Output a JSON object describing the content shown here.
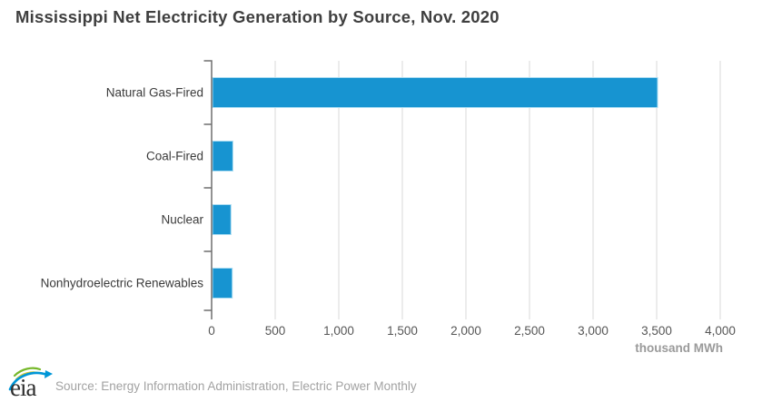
{
  "title": "Mississippi Net Electricity Generation by Source, Nov. 2020",
  "footer": {
    "logo_text": "eia",
    "source": "Source: Energy Information Administration, Electric Power Monthly"
  },
  "colors": {
    "bar": "#1794d1",
    "bar_edge": "#aadcf2",
    "grid": "#d8d8d8",
    "axis": "#6f6f6f",
    "title": "#3f3f3f",
    "category_label": "#3b3b3b",
    "tick_label": "#565656",
    "axis_unit": "#9a9a9a",
    "source_text": "#a2a2a2",
    "logo_blue": "#0096d7",
    "logo_green": "#76b82a",
    "logo_yellow": "#cfc733",
    "logo_text_color": "#2d2d2d"
  },
  "chart_data": {
    "type": "bar",
    "orientation": "horizontal",
    "title": "Mississippi Net Electricity Generation by Source, Nov. 2020",
    "categories": [
      "Natural Gas-Fired",
      "Coal-Fired",
      "Nuclear",
      "Nonhydroelectric Renewables"
    ],
    "values": [
      3500,
      160,
      145,
      155
    ],
    "unit_label": "thousand MWh",
    "xlabel": "thousand MWh",
    "ylabel": "",
    "xlim": [
      0,
      4000
    ],
    "x_ticks": [
      0,
      500,
      1000,
      1500,
      2000,
      2500,
      3000,
      3500,
      4000
    ],
    "x_tick_labels": [
      "0",
      "500",
      "1,000",
      "1,500",
      "2,000",
      "2,500",
      "3,000",
      "3,500",
      "4,000"
    ],
    "grid": true,
    "legend": false
  }
}
